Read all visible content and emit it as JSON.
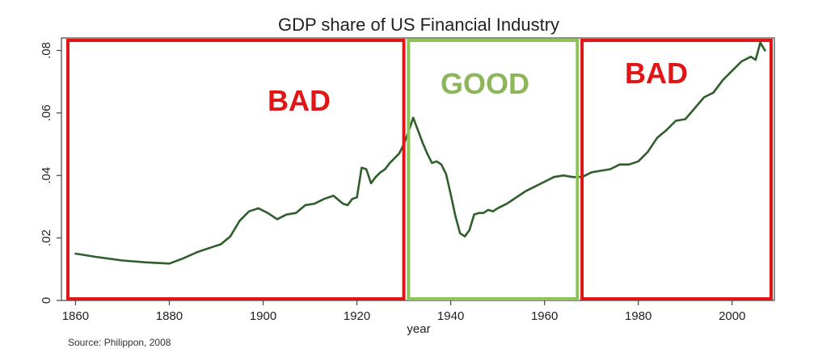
{
  "chart_data": {
    "type": "line",
    "title": "GDP share of US Financial Industry",
    "xlabel": "year",
    "ylabel": "",
    "source": "Source: Philippon, 2008",
    "xlim": [
      1857,
      2009
    ],
    "ylim": [
      0,
      0.084
    ],
    "x_ticks": [
      1860,
      1880,
      1900,
      1920,
      1940,
      1960,
      1980,
      2000
    ],
    "y_ticks": [
      0,
      0.02,
      0.04,
      0.06,
      0.08
    ],
    "y_tick_labels": [
      "0",
      ".02",
      ".04",
      ".06",
      ".08"
    ],
    "grid": false,
    "line_color": "#2e5e2a",
    "series": [
      {
        "x": [
          1860,
          1865,
          1870,
          1875,
          1880,
          1883,
          1886,
          1889,
          1891,
          1893,
          1895,
          1897,
          1899,
          1901,
          1903,
          1905,
          1907,
          1909,
          1911,
          1913,
          1915,
          1917,
          1918,
          1919,
          1920,
          1921,
          1922,
          1923,
          1924,
          1925,
          1926,
          1927,
          1928,
          1929,
          1930,
          1931,
          1932,
          1933,
          1934,
          1935,
          1936,
          1937,
          1938,
          1939,
          1940,
          1941,
          1942,
          1943,
          1944,
          1945,
          1946,
          1947,
          1948,
          1949,
          1950,
          1952,
          1954,
          1956,
          1958,
          1960,
          1962,
          1964,
          1966,
          1968,
          1970,
          1972,
          1974,
          1976,
          1978,
          1980,
          1982,
          1984,
          1986,
          1988,
          1990,
          1992,
          1994,
          1996,
          1998,
          2000,
          2002,
          2004,
          2005,
          2006,
          2007
        ],
        "values": [
          0.015,
          0.0138,
          0.0128,
          0.0122,
          0.0118,
          0.0135,
          0.0155,
          0.017,
          0.018,
          0.0205,
          0.0255,
          0.0285,
          0.0295,
          0.028,
          0.026,
          0.0275,
          0.028,
          0.0305,
          0.031,
          0.0325,
          0.0335,
          0.031,
          0.0305,
          0.0325,
          0.033,
          0.0425,
          0.042,
          0.0375,
          0.0395,
          0.041,
          0.042,
          0.044,
          0.0455,
          0.047,
          0.05,
          0.054,
          0.0585,
          0.0545,
          0.0505,
          0.047,
          0.044,
          0.0445,
          0.0435,
          0.0405,
          0.034,
          0.027,
          0.0215,
          0.0205,
          0.0225,
          0.0275,
          0.028,
          0.028,
          0.029,
          0.0285,
          0.0295,
          0.031,
          0.033,
          0.035,
          0.0365,
          0.038,
          0.0395,
          0.04,
          0.0395,
          0.0395,
          0.041,
          0.0415,
          0.042,
          0.0435,
          0.0435,
          0.0445,
          0.0475,
          0.052,
          0.0545,
          0.0575,
          0.058,
          0.0615,
          0.065,
          0.0665,
          0.0705,
          0.0735,
          0.0765,
          0.078,
          0.077,
          0.0825,
          0.08
        ]
      }
    ],
    "regions": [
      {
        "label": "BAD",
        "from": 1857,
        "to": 1930,
        "color": "#e01515",
        "text_color": "#e01515"
      },
      {
        "label": "GOOD",
        "from": 1931,
        "to": 1967,
        "color": "#8ec35a",
        "text_color": "#8db55a"
      },
      {
        "label": "BAD",
        "from": 1968,
        "to": 2009,
        "color": "#e01515",
        "text_color": "#e01515"
      }
    ]
  }
}
